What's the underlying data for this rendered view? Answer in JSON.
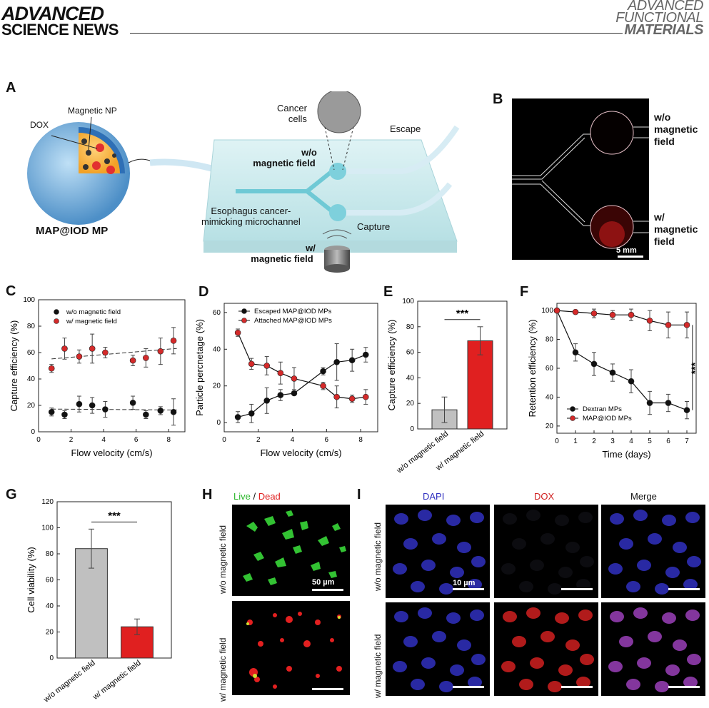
{
  "header": {
    "publisher_line1": "ADVANCED",
    "publisher_line2": "SCIENCE NEWS",
    "journal_line1": "ADVANCED",
    "journal_line2": "FUNCTIONAL",
    "journal_line3": "MATERIALS"
  },
  "panels": {
    "A": "A",
    "B": "B",
    "C": "C",
    "D": "D",
    "E": "E",
    "F": "F",
    "G": "G",
    "H": "H",
    "I": "I"
  },
  "panelA": {
    "magnetic_np": "Magnetic NP",
    "dox": "DOX",
    "particle_name": "MAP@IOD MP",
    "cancer_cells_1": "Cancer",
    "cancer_cells_2": "cells",
    "escape": "Escape",
    "wo_field_1": "w/o",
    "wo_field_2": "magnetic field",
    "channel_1": "Esophagus cancer-",
    "channel_2": "mimicking microchannel",
    "capture": "Capture",
    "w_field_1": "w/",
    "w_field_2": "magnetic field"
  },
  "panelB": {
    "wo_1": "w/o",
    "wo_2": "magnetic",
    "wo_3": "field",
    "w_1": "w/",
    "w_2": "magnetic",
    "w_3": "field",
    "scalebar": "5 mm"
  },
  "panelH": {
    "live": "Live",
    "slash": " / ",
    "dead": "Dead",
    "row1": "w/o magnetic  field",
    "row2": "w/ magnetic field",
    "scalebar": "50 µm",
    "live_color": "#2db82d",
    "dead_color": "#e02020"
  },
  "panelI": {
    "col_dapi": "DAPI",
    "col_dox": "DOX",
    "col_merge": "Merge",
    "row1": "w/o magnetic field",
    "row2": "w/ magnetic field",
    "scalebar": "10 µm",
    "dapi_color": "#3030c0",
    "dox_color": "#d02020"
  },
  "chart_data": [
    {
      "id": "C",
      "type": "scatter",
      "xlabel": "Flow velocity (cm/s)",
      "ylabel": "Capture efficiency (%)",
      "xlim": [
        0,
        9
      ],
      "ylim": [
        0,
        100
      ],
      "xticks": [
        0,
        2,
        4,
        6,
        8
      ],
      "yticks": [
        0,
        20,
        40,
        60,
        80,
        100
      ],
      "legend": "top-left",
      "series": [
        {
          "name": "w/o magnetic field",
          "color": "#111111",
          "x": [
            0.8,
            1.6,
            2.5,
            3.3,
            4.1,
            5.8,
            6.6,
            7.5,
            8.3
          ],
          "y": [
            15,
            13,
            21,
            20,
            17,
            22,
            13,
            16,
            15
          ],
          "err": [
            3,
            3,
            6,
            6,
            6,
            5,
            3,
            3,
            10
          ]
        },
        {
          "name": "w/ magnetic field",
          "color": "#d42a2a",
          "x": [
            0.8,
            1.6,
            2.5,
            3.3,
            4.1,
            5.8,
            6.6,
            7.5,
            8.3
          ],
          "y": [
            48,
            63,
            57,
            63,
            60,
            54,
            56,
            61,
            69
          ],
          "err": [
            3,
            8,
            5,
            11,
            4,
            4,
            7,
            10,
            10
          ]
        }
      ]
    },
    {
      "id": "D",
      "type": "line",
      "xlabel": "Flow velocity (cm/s)",
      "ylabel": "Particle percnetage (%)",
      "xlim": [
        0,
        9
      ],
      "ylim": [
        -5,
        65
      ],
      "xticks": [
        0,
        2,
        4,
        6,
        8
      ],
      "yticks": [
        0,
        20,
        40,
        60
      ],
      "legend": "top-left",
      "series": [
        {
          "name": "Escaped MAP@IOD MPs",
          "color": "#111111",
          "x": [
            0.8,
            1.6,
            2.5,
            3.3,
            4.1,
            5.8,
            6.6,
            7.5,
            8.3
          ],
          "y": [
            3,
            5,
            12,
            15,
            16,
            28,
            33,
            34,
            37
          ],
          "err": [
            3,
            5,
            7,
            3,
            1,
            2,
            10,
            6,
            4
          ]
        },
        {
          "name": "Attached MAP@IOD MPs",
          "color": "#d42a2a",
          "x": [
            0.8,
            1.6,
            2.5,
            3.3,
            4.1,
            5.8,
            6.6,
            7.5,
            8.3
          ],
          "y": [
            49,
            32,
            31,
            27,
            24,
            20,
            14,
            13,
            14
          ],
          "err": [
            2,
            3,
            5,
            6,
            6,
            2,
            6,
            2,
            4
          ]
        }
      ]
    },
    {
      "id": "E",
      "type": "bar",
      "ylabel": "Capture efficiency (%)",
      "ylim": [
        0,
        100
      ],
      "yticks": [
        0,
        20,
        40,
        60,
        80,
        100
      ],
      "categories": [
        "w/o magnetic field",
        "w/ magnetic field"
      ],
      "values": [
        15,
        69
      ],
      "err": [
        10,
        11
      ],
      "colors": [
        "#c0c0c0",
        "#e02020"
      ],
      "significance": "***"
    },
    {
      "id": "F",
      "type": "line",
      "xlabel": "Time (days)",
      "ylabel": "Retention efficiency (%)",
      "xlim": [
        0,
        7.5
      ],
      "ylim": [
        15,
        105
      ],
      "xticks": [
        0,
        1,
        2,
        3,
        4,
        5,
        6,
        7
      ],
      "yticks": [
        20,
        40,
        60,
        80,
        100
      ],
      "legend": "bottom-left",
      "significance": "***",
      "series": [
        {
          "name": "Dextran MPs",
          "color": "#111111",
          "x": [
            0,
            1,
            2,
            3,
            4,
            5,
            6,
            7
          ],
          "y": [
            100,
            71,
            63,
            57,
            51,
            36,
            36,
            31
          ],
          "err": [
            0,
            6,
            8,
            6,
            8,
            8,
            6,
            6
          ]
        },
        {
          "name": "MAP@IOD MPs",
          "color": "#d42a2a",
          "x": [
            0,
            1,
            2,
            3,
            4,
            5,
            6,
            7
          ],
          "y": [
            100,
            99,
            98,
            97,
            97,
            93,
            90,
            90
          ],
          "err": [
            1,
            1,
            3,
            3,
            4,
            7,
            9,
            9
          ]
        }
      ]
    },
    {
      "id": "G",
      "type": "bar",
      "ylabel": "Cell viability (%)",
      "ylim": [
        0,
        120
      ],
      "yticks": [
        0,
        20,
        40,
        60,
        80,
        100,
        120
      ],
      "categories": [
        "w/o magnetic field",
        "w/ magnetic field"
      ],
      "values": [
        84,
        24
      ],
      "err": [
        15,
        6
      ],
      "colors": [
        "#c0c0c0",
        "#e02020"
      ],
      "significance": "***"
    }
  ]
}
